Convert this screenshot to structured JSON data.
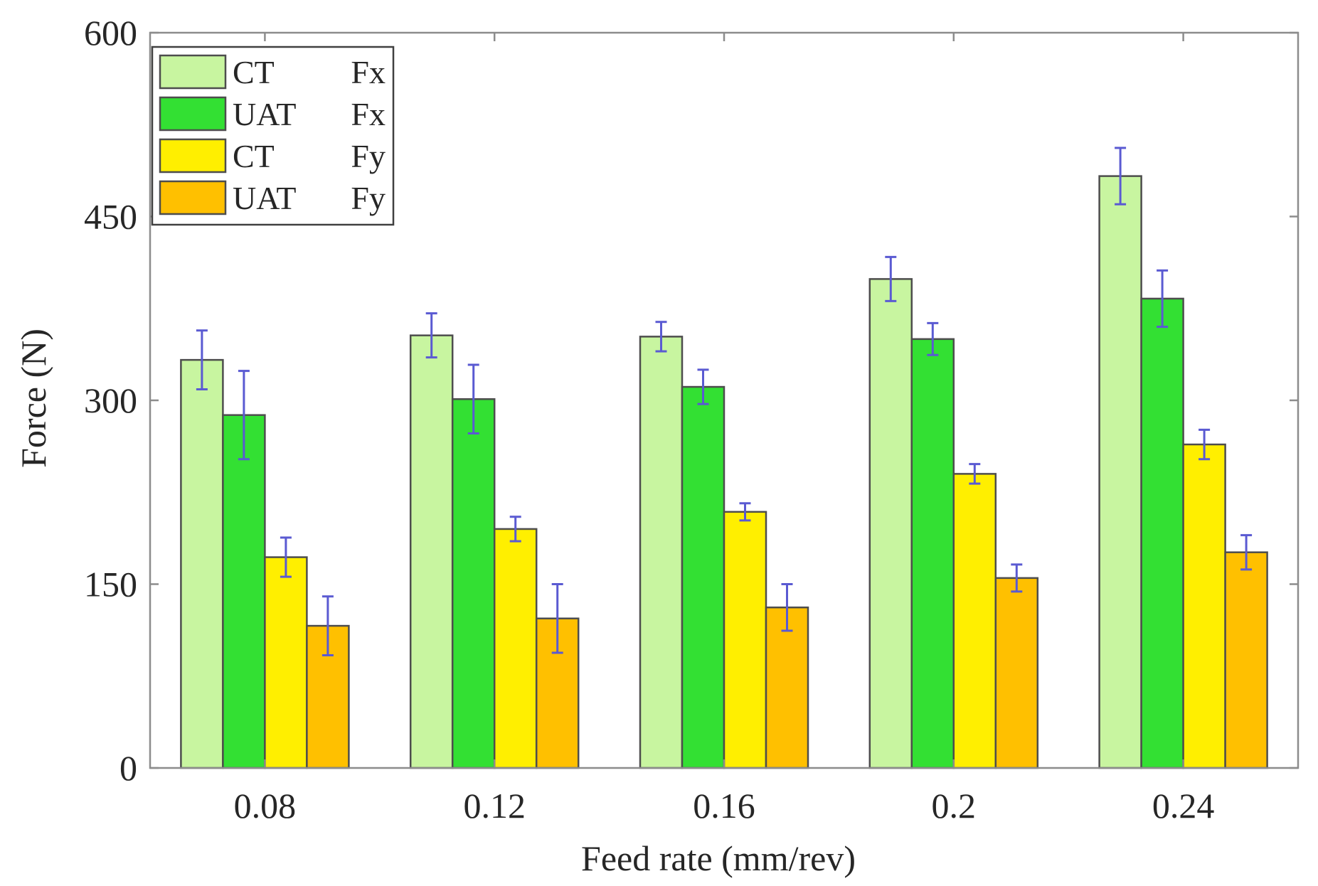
{
  "chart_data": {
    "type": "bar",
    "title": "",
    "xlabel": "Feed rate (mm/rev)",
    "ylabel": "Force (N)",
    "categories": [
      "0.08",
      "0.12",
      "0.16",
      "0.2",
      "0.24"
    ],
    "ylim": [
      0,
      600
    ],
    "yticks": [
      "0",
      "150",
      "300",
      "450",
      "600"
    ],
    "grid": false,
    "legend_position": "top-left",
    "series": [
      {
        "name": "CT Fx",
        "label": "CT",
        "component": "Fx",
        "color": "#c8f5a0",
        "values": [
          333,
          353,
          352,
          399,
          483
        ],
        "errors": [
          24,
          18,
          12,
          18,
          23
        ]
      },
      {
        "name": "UAT Fx",
        "label": "UAT",
        "component": "Fx",
        "color": "#33e033",
        "values": [
          288,
          301,
          311,
          350,
          383
        ],
        "errors": [
          36,
          28,
          14,
          13,
          23
        ]
      },
      {
        "name": "CT Fy",
        "label": "CT",
        "component": "Fy",
        "color": "#ffef00",
        "values": [
          172,
          195,
          209,
          240,
          264
        ],
        "errors": [
          16,
          10,
          7,
          8,
          12
        ]
      },
      {
        "name": "UAT Fy",
        "label": "UAT",
        "component": "Fy",
        "color": "#ffc000",
        "values": [
          116,
          122,
          131,
          155,
          176
        ],
        "errors": [
          24,
          28,
          19,
          11,
          14
        ]
      }
    ]
  }
}
